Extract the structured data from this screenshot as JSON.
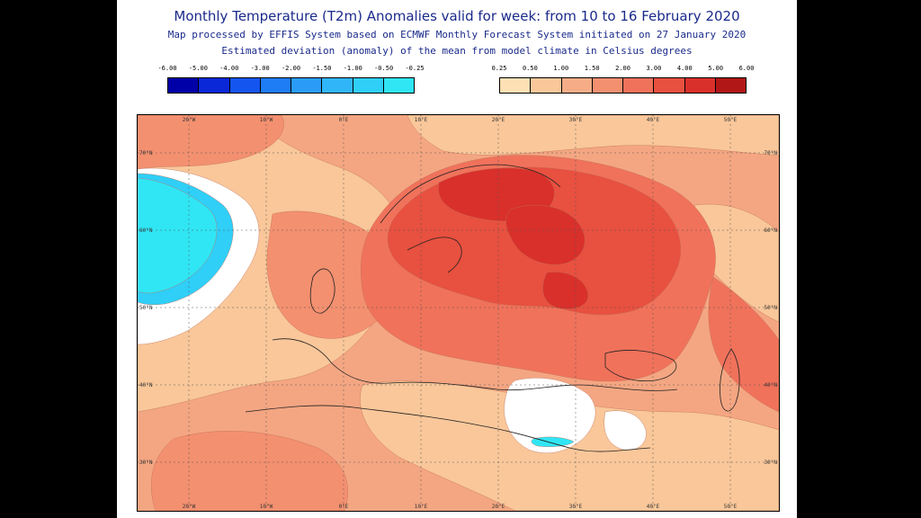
{
  "title": "Monthly Temperature (T2m) Anomalies valid for week: from 10 to 16 February 2020",
  "subtitle1": "Map processed by EFFIS System based on ECMWF Monthly Forecast System initiated on 27 January 2020",
  "subtitle2": "Estimated deviation (anomaly) of the mean from model climate in Celsius degrees",
  "legend_cold": {
    "labels": [
      "-6.00",
      "-5.00",
      "-4.00",
      "-3.00",
      "-2.00",
      "-1.50",
      "-1.00",
      "-0.50",
      "-0.25"
    ],
    "colors": [
      "#0000a8",
      "#0a28d8",
      "#1455f0",
      "#1e7cf5",
      "#2a9cf8",
      "#30b6f8",
      "#2fcff8",
      "#30e6f5"
    ]
  },
  "legend_warm": {
    "labels": [
      "0.25",
      "0.50",
      "1.00",
      "1.50",
      "2.00",
      "3.00",
      "4.00",
      "5.00",
      "6.00"
    ],
    "colors": [
      "#fde0b4",
      "#f9c79a",
      "#f6ad87",
      "#f39070",
      "#f0725b",
      "#e8503f",
      "#d9302b",
      "#b21717"
    ]
  },
  "map": {
    "lon_labels_top": [
      "20°W",
      "10°W",
      "0°E",
      "10°E",
      "20°E",
      "30°E",
      "40°E",
      "50°E"
    ],
    "lon_labels_bottom": [
      "20°W",
      "10°W",
      "0°E",
      "10°E",
      "20°E",
      "30°E",
      "40°E",
      "50°E"
    ],
    "lat_labels_left": [
      "70°N",
      "60°N",
      "50°N",
      "40°N",
      "30°N"
    ],
    "lat_labels_right": [
      "70°N",
      "60°N",
      "50°N",
      "40°N",
      "30°N"
    ],
    "colors": {
      "background": "#f4a682",
      "light_warm": "#f9c79a",
      "palest_warm": "#fde0b4",
      "mid_warm": "#f39070",
      "strong_warm": "#f0725b",
      "hot": "#e8503f",
      "hottest": "#d9302b",
      "cyan": "#30e6f5",
      "light_blue": "#2fcff8",
      "neutral": "#ffffff"
    }
  }
}
